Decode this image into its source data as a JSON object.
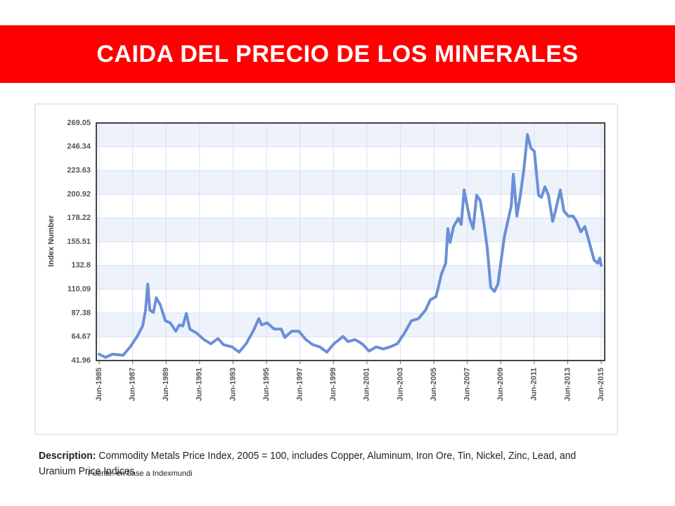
{
  "chart_data": {
    "type": "line",
    "title": "CAIDA DEL PRECIO DE LOS MINERALES",
    "ylabel": "Index Number",
    "description_label": "Description:",
    "description": "Commodity Metals Price Index, 2005 = 100, includes Copper, Aluminum, Iron Ore, Tin, Nickel, Zinc, Lead, and Uranium Price Indices",
    "source": "Fuente: en base a Indexmundi",
    "x": [
      1985.5,
      1985.88,
      1986.3,
      1986.93,
      1987.35,
      1987.77,
      1988.1,
      1988.27,
      1988.4,
      1988.53,
      1988.74,
      1988.91,
      1989.16,
      1989.45,
      1989.75,
      1990.08,
      1990.29,
      1990.5,
      1990.71,
      1990.92,
      1991.34,
      1991.76,
      1992.18,
      1992.6,
      1992.94,
      1993.44,
      1993.86,
      1994.28,
      1994.7,
      1995.04,
      1995.21,
      1995.54,
      1995.96,
      1996.38,
      1996.59,
      1997.01,
      1997.43,
      1997.85,
      1998.27,
      1998.69,
      1999.11,
      1999.53,
      2000.08,
      2000.37,
      2000.79,
      2001.21,
      2001.63,
      2002.05,
      2002.47,
      2002.89,
      2003.32,
      2003.74,
      2004.16,
      2004.58,
      2005.0,
      2005.29,
      2005.63,
      2005.96,
      2006.21,
      2006.34,
      2006.47,
      2006.68,
      2006.97,
      2007.14,
      2007.31,
      2007.43,
      2007.64,
      2007.85,
      2008.06,
      2008.27,
      2008.48,
      2008.69,
      2008.9,
      2009.12,
      2009.33,
      2009.54,
      2009.71,
      2009.92,
      2010.13,
      2010.25,
      2010.46,
      2010.67,
      2010.88,
      2011.09,
      2011.3,
      2011.51,
      2011.76,
      2011.93,
      2012.14,
      2012.35,
      2012.6,
      2012.77,
      2013.06,
      2013.27,
      2013.53,
      2013.82,
      2014.03,
      2014.28,
      2014.53,
      2014.79,
      2015.08,
      2015.29,
      2015.42,
      2015.5
    ],
    "series": [
      {
        "color": "#6b8fd6",
        "values": [
          48,
          45,
          48,
          47,
          55,
          65,
          75,
          90,
          115,
          90,
          88,
          102,
          95,
          80,
          78,
          70,
          76,
          75,
          87,
          72,
          68,
          62,
          58,
          63,
          57,
          55,
          50,
          58,
          70,
          82,
          76,
          78,
          72,
          72,
          64,
          70,
          70,
          62,
          57,
          55,
          50,
          58,
          65,
          60,
          62,
          58,
          51,
          55,
          53,
          55,
          58,
          68,
          80,
          82,
          90,
          100,
          103,
          125,
          135,
          168,
          155,
          170,
          178,
          172,
          205,
          195,
          178,
          168,
          200,
          195,
          175,
          150,
          112,
          108,
          115,
          140,
          160,
          175,
          190,
          220,
          180,
          200,
          225,
          258,
          245,
          242,
          200,
          198,
          208,
          200,
          175,
          185,
          205,
          185,
          180,
          180,
          175,
          165,
          170,
          155,
          138,
          135,
          140,
          133
        ]
      }
    ],
    "xlim": [
      1985.33,
      2015.71
    ],
    "xticks": [
      {
        "value": 1985.5,
        "label": "Jun-1985"
      },
      {
        "value": 1987.5,
        "label": "Jun-1987"
      },
      {
        "value": 1989.5,
        "label": "Jun-1989"
      },
      {
        "value": 1991.5,
        "label": "Jun-1991"
      },
      {
        "value": 1993.5,
        "label": "Jun-1993"
      },
      {
        "value": 1995.5,
        "label": "Jun-1995"
      },
      {
        "value": 1997.5,
        "label": "Jun-1997"
      },
      {
        "value": 1999.5,
        "label": "Jun-1999"
      },
      {
        "value": 2001.5,
        "label": "Jun-2001"
      },
      {
        "value": 2003.5,
        "label": "Jun-2003"
      },
      {
        "value": 2005.5,
        "label": "Jun-2005"
      },
      {
        "value": 2007.5,
        "label": "Jun-2007"
      },
      {
        "value": 2009.5,
        "label": "Jun-2009"
      },
      {
        "value": 2011.5,
        "label": "Jun-2011"
      },
      {
        "value": 2013.5,
        "label": "Jun-2013"
      },
      {
        "value": 2015.5,
        "label": "Jun-2015"
      }
    ],
    "ylim": [
      41.96,
      269.05
    ],
    "yticks": [
      41.96,
      64.67,
      87.38,
      110.09,
      132.8,
      155.51,
      178.22,
      200.92,
      223.63,
      246.34,
      269.05
    ],
    "grid": true
  }
}
